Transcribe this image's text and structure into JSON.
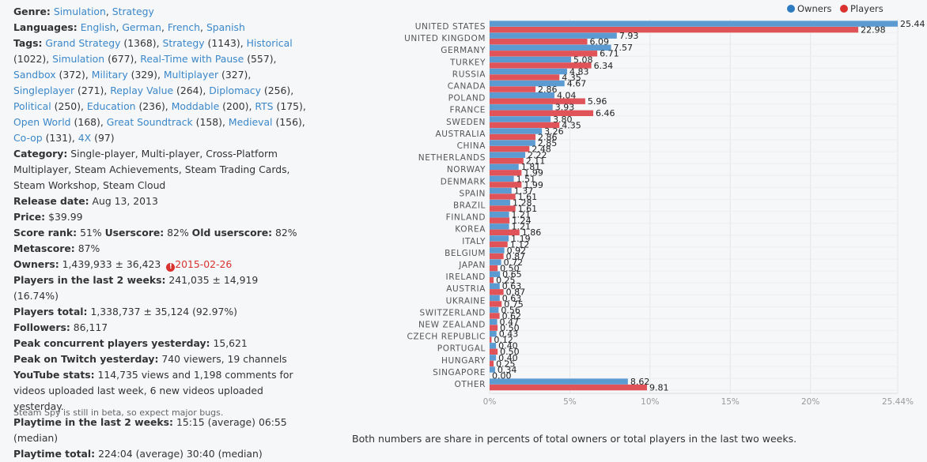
{
  "info": {
    "genre_label": "Genre:",
    "genres": [
      "Simulation",
      "Strategy"
    ],
    "languages_label": "Languages:",
    "languages": [
      "English",
      "German",
      "French",
      "Spanish"
    ],
    "tags_label": "Tags:",
    "tags": [
      {
        "name": "Grand Strategy",
        "count": "(1368)"
      },
      {
        "name": "Strategy",
        "count": "(1143)"
      },
      {
        "name": "Historical",
        "count": "(1022)"
      },
      {
        "name": "Simulation",
        "count": "(677)"
      },
      {
        "name": "Real-Time with Pause",
        "count": "(557)"
      },
      {
        "name": "Sandbox",
        "count": "(372)"
      },
      {
        "name": "Military",
        "count": "(329)"
      },
      {
        "name": "Multiplayer",
        "count": "(327)"
      },
      {
        "name": "Singleplayer",
        "count": "(271)"
      },
      {
        "name": "Replay Value",
        "count": "(264)"
      },
      {
        "name": "Diplomacy",
        "count": "(256)"
      },
      {
        "name": "Political",
        "count": "(250)"
      },
      {
        "name": "Education",
        "count": "(236)"
      },
      {
        "name": "Moddable",
        "count": "(200)"
      },
      {
        "name": "RTS",
        "count": "(175)"
      },
      {
        "name": "Open World",
        "count": "(168)"
      },
      {
        "name": "Great Soundtrack",
        "count": "(158)"
      },
      {
        "name": "Medieval",
        "count": "(156)"
      },
      {
        "name": "Co-op",
        "count": "(131)"
      },
      {
        "name": "4X",
        "count": "(97)"
      }
    ],
    "category_label": "Category:",
    "category_value": "Single-player, Multi-player, Cross-Platform Multiplayer, Steam Achievements, Steam Trading Cards, Steam Workshop, Steam Cloud",
    "release_label": "Release date:",
    "release_value": "Aug 13, 2013",
    "price_label": "Price:",
    "price_value": "$39.99",
    "score_rank_label": "Score rank:",
    "score_rank_value": "51%",
    "userscore_label": "Userscore:",
    "userscore_value": "82%",
    "old_userscore_label": "Old userscore:",
    "old_userscore_value": "82%",
    "metascore_label": "Metascore:",
    "metascore_value": "87%",
    "owners_label": "Owners:",
    "owners_value": "1,439,933 ± 36,423",
    "owners_warning_icon": "!",
    "owners_date": "2015-02-26",
    "players2w_label": "Players in the last 2 weeks:",
    "players2w_value": "241,035 ± 14,919 (16.74%)",
    "players_total_label": "Players total:",
    "players_total_value": "1,338,737 ± 35,124 (92.97%)",
    "followers_label": "Followers:",
    "followers_value": "86,117",
    "peak_label": "Peak concurrent players yesterday:",
    "peak_value": "15,621",
    "twitch_label": "Peak on Twitch yesterday:",
    "twitch_value": "740 viewers, 19 channels",
    "youtube_label": "YouTube stats:",
    "youtube_value": "114,735 views and 1,198 comments for videos uploaded last week, 6 new videos uploaded yesterday.",
    "playtime2w_label": "Playtime in the last 2 weeks:",
    "playtime2w_value": "15:15 (average) 06:55 (median)",
    "playtime_total_label": "Playtime total:",
    "playtime_total_value": "224:04 (average) 30:40 (median)"
  },
  "beta_note": "Steam Spy is still in beta, so expect major bugs.",
  "caption": "Both numbers are share in percents of total owners or total players in the last two weeks.",
  "colors": {
    "owners": "#5b9bd1",
    "players": "#e05459",
    "legend_owners": "#2c7bc0",
    "legend_players": "#d9322f",
    "link": "#3b87c9"
  },
  "chart_data": {
    "type": "bar",
    "orientation": "horizontal",
    "categories": [
      "UNITED STATES",
      "UNITED KINGDOM",
      "GERMANY",
      "TURKEY",
      "RUSSIA",
      "CANADA",
      "POLAND",
      "FRANCE",
      "SWEDEN",
      "AUSTRALIA",
      "CHINA",
      "NETHERLANDS",
      "NORWAY",
      "DENMARK",
      "SPAIN",
      "BRAZIL",
      "FINLAND",
      "KOREA",
      "ITALY",
      "BELGIUM",
      "JAPAN",
      "IRELAND",
      "AUSTRIA",
      "UKRAINE",
      "SWITZERLAND",
      "NEW ZEALAND",
      "CZECH REPUBLIC",
      "PORTUGAL",
      "HUNGARY",
      "SINGAPORE",
      "OTHER"
    ],
    "series": [
      {
        "name": "Owners",
        "values": [
          25.44,
          7.93,
          7.57,
          5.08,
          4.83,
          4.67,
          4.04,
          3.93,
          3.8,
          3.26,
          2.85,
          2.22,
          1.81,
          1.51,
          1.37,
          1.28,
          1.21,
          1.21,
          1.19,
          0.92,
          0.72,
          0.65,
          0.63,
          0.63,
          0.56,
          0.47,
          0.43,
          0.4,
          0.4,
          0.34,
          8.62
        ],
        "labels": [
          "25.44",
          "7.93",
          "7.57",
          "5.08",
          "4.83",
          "4.67",
          "4.04",
          "3.93",
          "3.80",
          "3.26",
          "2.85",
          "2.22",
          "1.81",
          "1.51",
          "1.37",
          "1.28",
          "1.21",
          "1.21",
          "1.19",
          "0.92",
          "0.72",
          "0.65",
          "0.63",
          "0.63",
          "0.56",
          "0.47",
          "0.43",
          "0.40",
          "0.40",
          "0.34",
          "8.62"
        ]
      },
      {
        "name": "Players",
        "values": [
          22.98,
          6.09,
          6.71,
          6.34,
          4.35,
          2.86,
          5.96,
          6.46,
          4.35,
          2.86,
          2.48,
          2.11,
          1.99,
          1.99,
          1.61,
          1.61,
          1.24,
          1.86,
          1.12,
          0.87,
          0.5,
          0.25,
          0.87,
          0.75,
          0.62,
          0.5,
          0.12,
          0.5,
          0.25,
          0.0,
          9.81
        ],
        "labels": [
          "22.98",
          "6.09",
          "6.71",
          "6.34",
          "4.35",
          "2.86",
          "5.96",
          "6.46",
          "4.35",
          "2.86",
          "2.48",
          "2.11",
          "1.99",
          "1.99",
          "1.61",
          "1.61",
          "1.24",
          "1.86",
          "1.12",
          "0.87",
          "0.50",
          "0.25",
          "0.87",
          "0.75",
          "0.62",
          "0.50",
          "0.12",
          "0.50",
          "0.25",
          "0.00",
          "9.81"
        ]
      }
    ],
    "xlim": [
      0,
      25.44
    ],
    "xticks": [
      0,
      5,
      10,
      15,
      20,
      25.44
    ],
    "xtick_labels": [
      "0%",
      "5%",
      "10%",
      "15%",
      "20%",
      "25.44%"
    ],
    "grid": true,
    "legend_position": "top-right"
  }
}
